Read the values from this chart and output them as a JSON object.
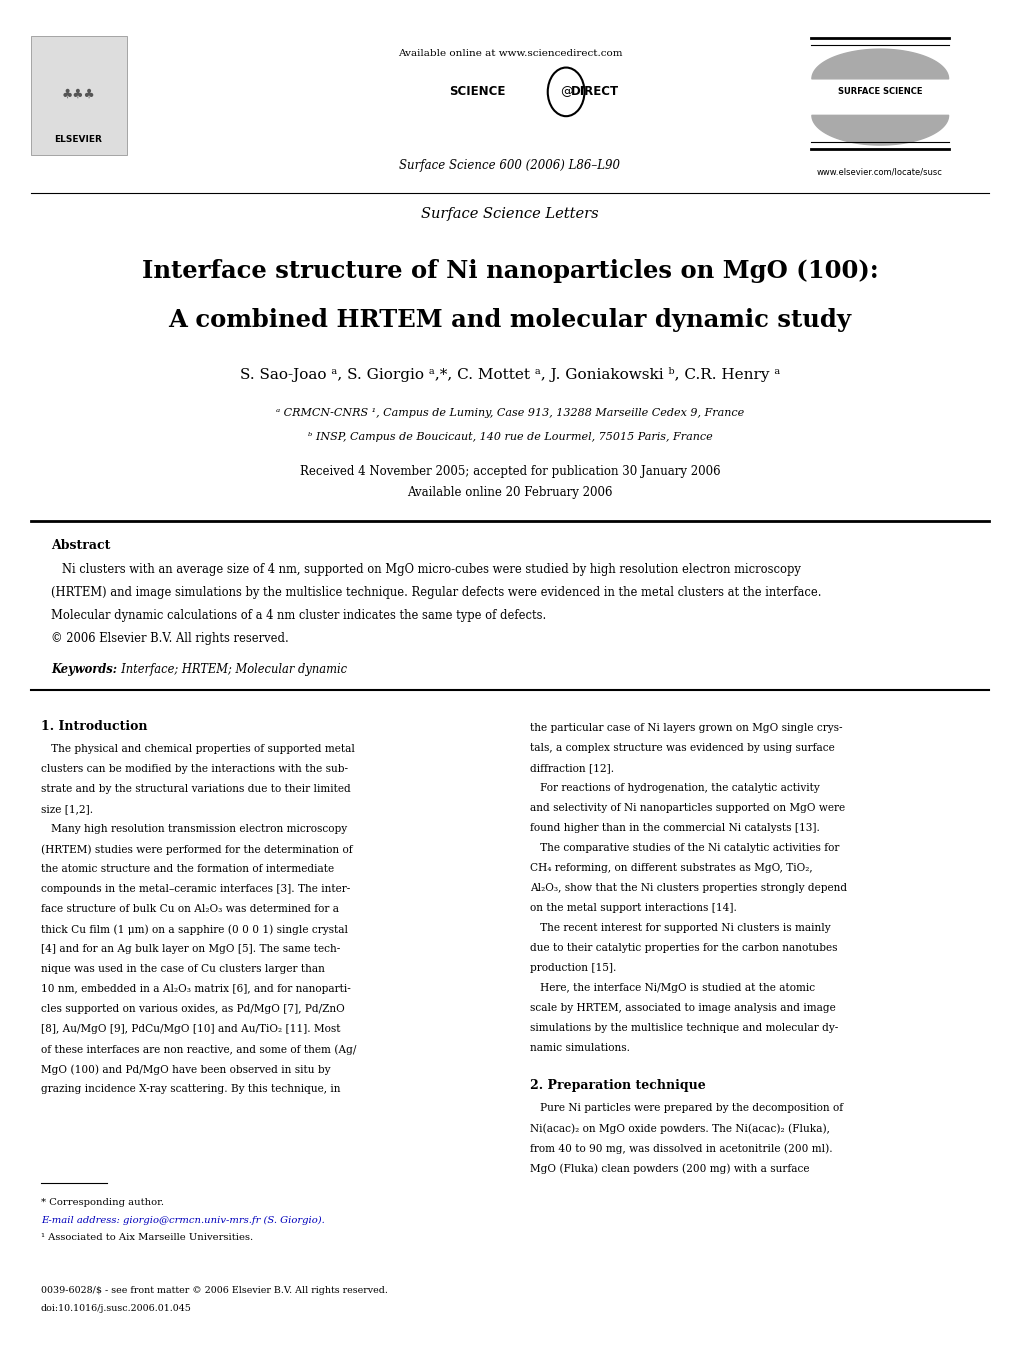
{
  "page_width": 10.2,
  "page_height": 13.51,
  "bg_color": "#ffffff",
  "header": {
    "available_online": "Available online at www.sciencedirect.com",
    "journal_ref": "Surface Science 600 (2006) L86–L90",
    "website": "www.elsevier.com/locate/susc",
    "section": "Surface Science Letters"
  },
  "title_line1": "Interface structure of Ni nanoparticles on MgO (100):",
  "title_line2": "A combined HRTEM and molecular dynamic study",
  "authors": "S. Sao-Joao ᵃ, S. Giorgio ᵃ,*, C. Mottet ᵃ, J. Goniakowski ᵇ, C.R. Henry ᵃ",
  "affil_a": "ᵃ CRMCN-CNRS ¹, Campus de Luminy, Case 913, 13288 Marseille Cedex 9, France",
  "affil_b": "ᵇ INSP, Campus de Boucicaut, 140 rue de Lourmel, 75015 Paris, France",
  "received": "Received 4 November 2005; accepted for publication 30 January 2006",
  "available_online2": "Available online 20 February 2006",
  "abstract_title": "Abstract",
  "abstract_text": "   Ni clusters with an average size of 4 nm, supported on MgO micro-cubes were studied by high resolution electron microscopy\n(HRTEM) and image simulations by the multislice technique. Regular defects were evidenced in the metal clusters at the interface.\nMolecular dynamic calculations of a 4 nm cluster indicates the same type of defects.\n© 2006 Elsevier B.V. All rights reserved.",
  "keywords_label": "Keywords:",
  "keywords_text": "  Interface; HRTEM; Molecular dynamic",
  "section1_title": "1. Introduction",
  "section1_col1": "   The physical and chemical properties of supported metal\nclusters can be modified by the interactions with the sub-\nstrate and by the structural variations due to their limited\nsize [1,2].\n   Many high resolution transmission electron microscopy\n(HRTEM) studies were performed for the determination of\nthe atomic structure and the formation of intermediate\ncompounds in the metal–ceramic interfaces [3]. The inter-\nface structure of bulk Cu on Al₂O₃ was determined for a\nthick Cu film (1 μm) on a sapphire (0 0 0 1) single crystal\n[4] and for an Ag bulk layer on MgO [5]. The same tech-\nnique was used in the case of Cu clusters larger than\n10 nm, embedded in a Al₂O₃ matrix [6], and for nanoparti-\ncles supported on various oxides, as Pd/MgO [7], Pd/ZnO\n[8], Au/MgO [9], PdCu/MgO [10] and Au/TiO₂ [11]. Most\nof these interfaces are non reactive, and some of them (Ag/\nMgO (100) and Pd/MgO have been observed in situ by\ngrazing incidence X-ray scattering. By this technique, in",
  "section1_col2": "the particular case of Ni layers grown on MgO single crys-\ntals, a complex structure was evidenced by using surface\ndiffraction [12].\n   For reactions of hydrogenation, the catalytic activity\nand selectivity of Ni nanoparticles supported on MgO were\nfound higher than in the commercial Ni catalysts [13].\n   The comparative studies of the Ni catalytic activities for\nCH₄ reforming, on different substrates as MgO, TiO₂,\nAl₂O₃, show that the Ni clusters properties strongly depend\non the metal support interactions [14].\n   The recent interest for supported Ni clusters is mainly\ndue to their catalytic properties for the carbon nanotubes\nproduction [15].\n   Here, the interface Ni/MgO is studied at the atomic\nscale by HRTEM, associated to image analysis and image\nsimulations by the multislice technique and molecular dy-\nnamic simulations.",
  "section2_title": "2. Preparation technique",
  "section2_col2": "   Pure Ni particles were prepared by the decomposition of\nNi(acac)₂ on MgO oxide powders. The Ni(acac)₂ (Fluka),\nfrom 40 to 90 mg, was dissolved in acetonitrile (200 ml).\nMgO (Fluka) clean powders (200 mg) with a surface",
  "footnote_star": "* Corresponding author.",
  "footnote_email": "E-mail address: giorgio@crmcn.univ-mrs.fr (S. Giorgio).",
  "footnote_1": "¹ Associated to Aix Marseille Universities.",
  "footer_issn": "0039-6028/$ - see front matter © 2006 Elsevier B.V. All rights reserved.",
  "footer_doi": "doi:10.1016/j.susc.2006.01.045"
}
